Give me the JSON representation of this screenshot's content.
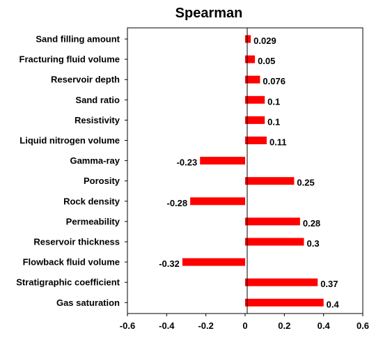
{
  "chart_data": {
    "type": "bar",
    "orientation": "horizontal",
    "title": "Spearman",
    "xlabel": "",
    "ylabel": "",
    "xlim": [
      -0.6,
      0.6
    ],
    "xticks": [
      "-0.6",
      "-0.4",
      "-0.2",
      "0",
      "0.2",
      "0.4",
      "0.6"
    ],
    "xtick_values": [
      -0.6,
      -0.4,
      -0.2,
      0,
      0.2,
      0.4,
      0.6
    ],
    "grid": false,
    "legend": "none",
    "bar_color": "#ff0000",
    "categories": [
      "Sand filling amount",
      "Fracturing fluid volume",
      "Reservoir depth",
      "Sand ratio",
      "Resistivity",
      "Liquid nitrogen volume",
      "Gamma-ray",
      "Porosity",
      "Rock density",
      "Permeability",
      "Reservoir thickness",
      "Flowback fluid volume",
      "Stratigraphic coefficient",
      "Gas saturation"
    ],
    "values": [
      0.029,
      0.05,
      0.076,
      0.1,
      0.1,
      0.11,
      -0.23,
      0.25,
      -0.28,
      0.28,
      0.3,
      -0.32,
      0.37,
      0.4
    ],
    "value_labels": [
      "0.029",
      "0.05",
      "0.076",
      "0.1",
      "0.1",
      "0.11",
      "-0.23",
      "0.25",
      "-0.28",
      "0.28",
      "0.3",
      "-0.32",
      "0.37",
      "0.4"
    ]
  }
}
